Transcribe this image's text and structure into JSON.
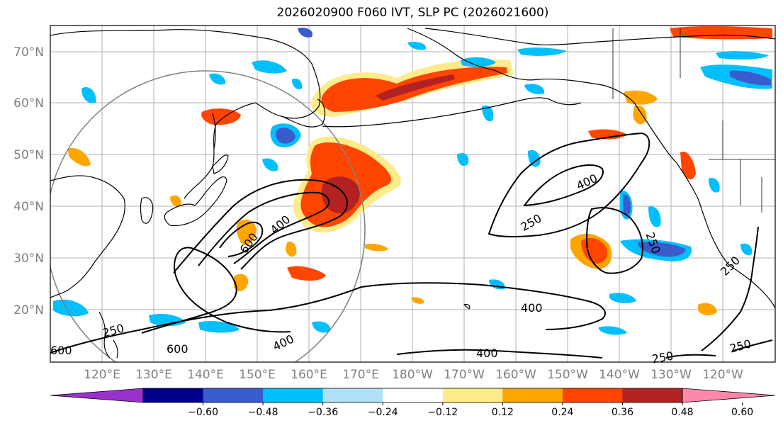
{
  "title": "2026020900 F060 IVT, SLP PC (2026021600)",
  "latitude_labels": [
    "70°N",
    "60°N",
    "50°N",
    "40°N",
    "30°N",
    "20°N"
  ],
  "longitude_labels": [
    "120°E",
    "130°E",
    "140°E",
    "150°E",
    "160°E",
    "170°E",
    "180°W",
    "170°W",
    "160°W",
    "150°W",
    "140°W",
    "130°W",
    "120°W"
  ],
  "contour_labels": [
    "600",
    "400",
    "400",
    "250",
    "250",
    "250",
    "400",
    "600",
    "400",
    "250",
    "250",
    "250",
    "400",
    "600"
  ],
  "colorbar": {
    "ticks": [
      "−0.60",
      "−0.48",
      "−0.36",
      "−0.24",
      "−0.12",
      "0.12",
      "0.24",
      "0.36",
      "0.48",
      "0.60"
    ],
    "colors": [
      "#9932cc",
      "#00008b",
      "#3a5bcc",
      "#00bfff",
      "#b0e0f8",
      "#ffffff",
      "#ffeb8a",
      "#ffa500",
      "#ff4500",
      "#b22222",
      "#ff88aa"
    ]
  },
  "colors": {
    "grid": "#b0b0b0",
    "coast": "#000000",
    "contour": "#000000",
    "circle": "#808080"
  }
}
